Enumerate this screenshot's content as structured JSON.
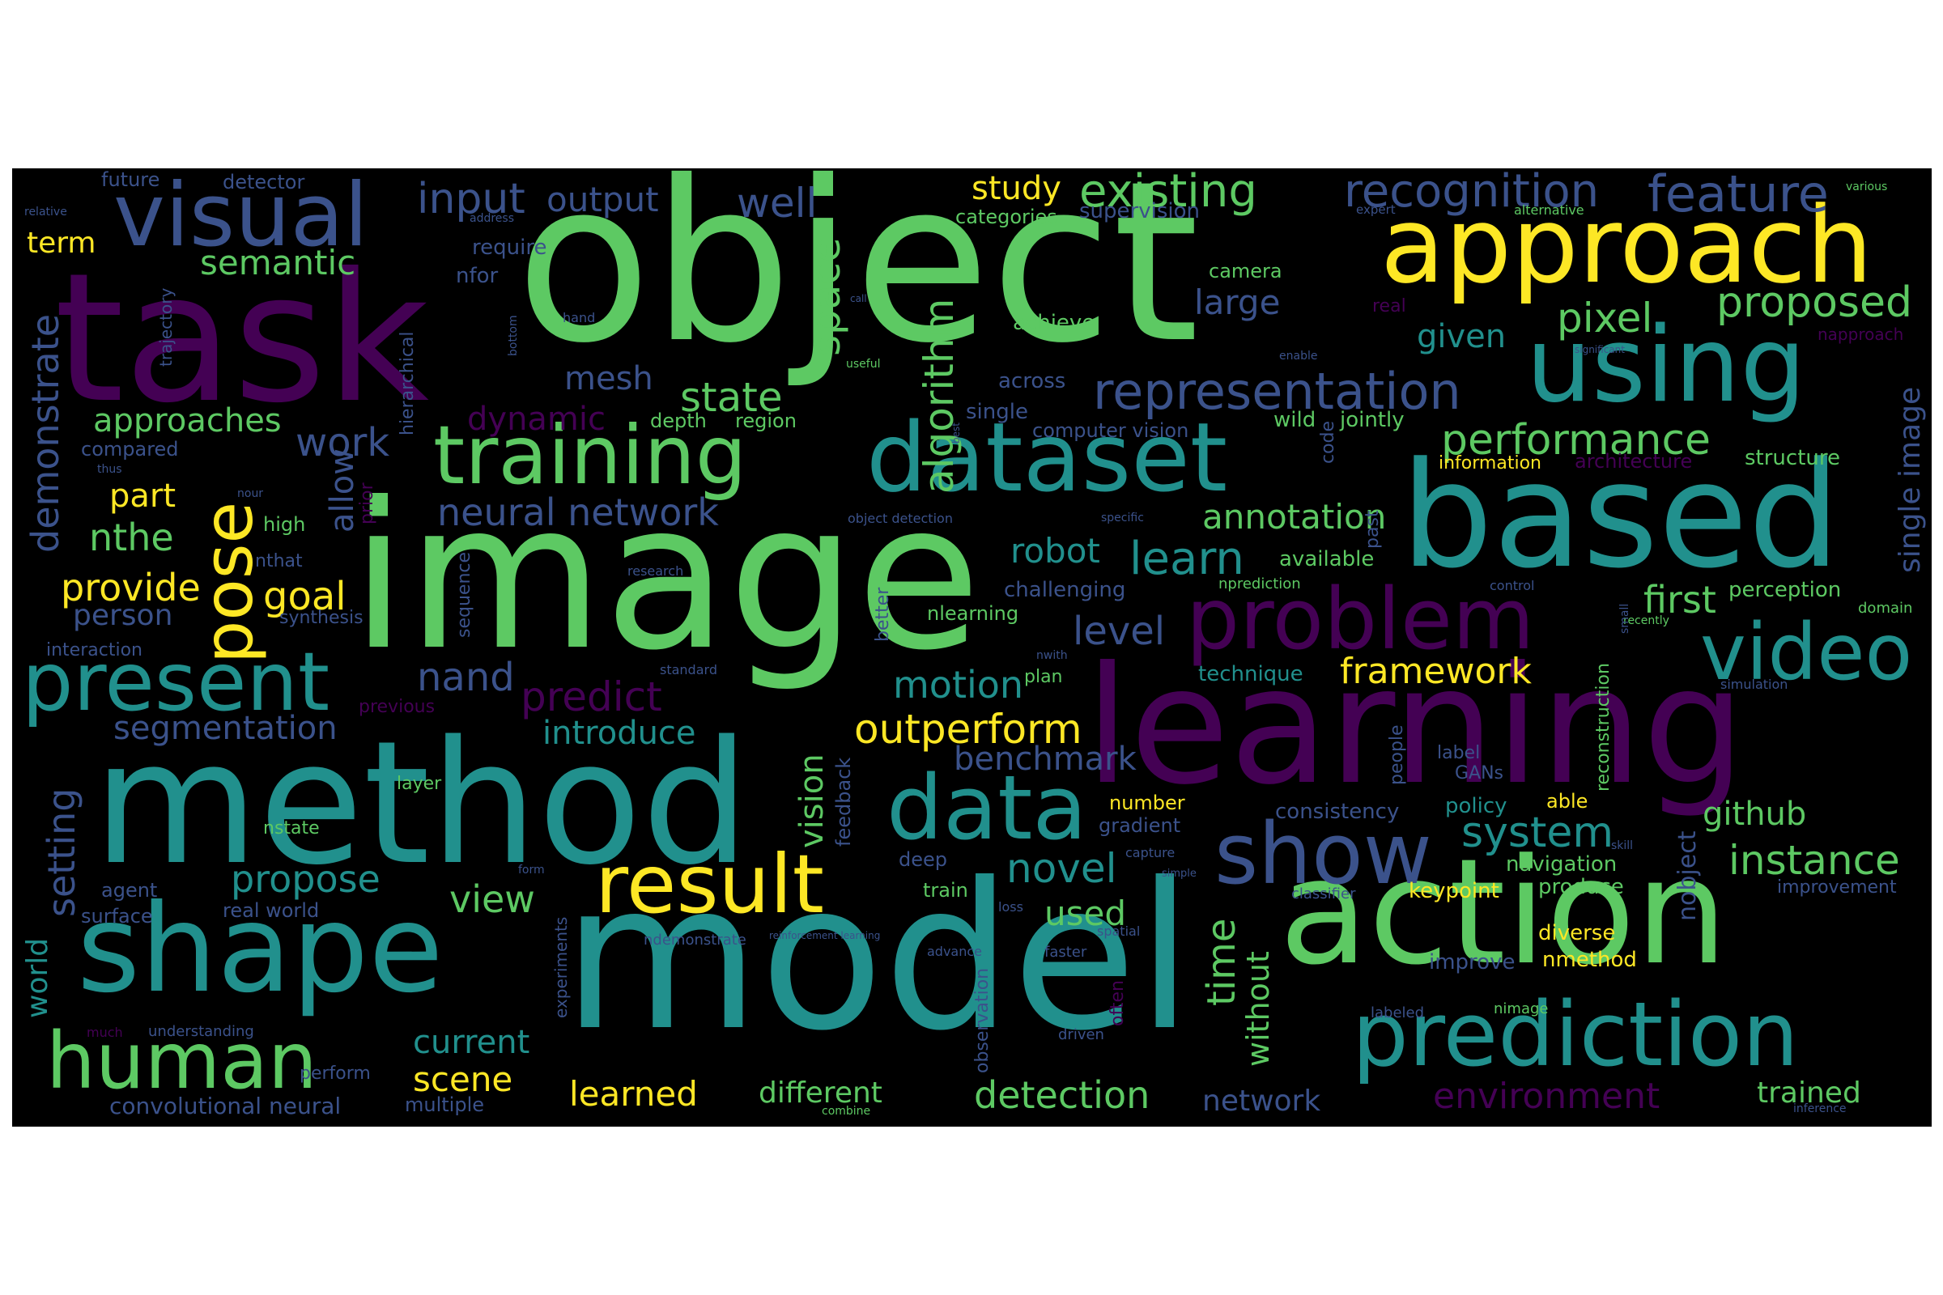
{
  "wordcloud": {
    "background": "#000000",
    "palette": [
      "#440154",
      "#3b528b",
      "#21908d",
      "#5dc963",
      "#fde725"
    ],
    "words": [
      {
        "text": "object",
        "color": "#5dc963"
      },
      {
        "text": "image",
        "color": "#5dc963"
      },
      {
        "text": "model",
        "color": "#21908d"
      },
      {
        "text": "task",
        "color": "#440154"
      },
      {
        "text": "method",
        "color": "#21908d"
      },
      {
        "text": "learning",
        "color": "#440154"
      },
      {
        "text": "action",
        "color": "#5dc963"
      },
      {
        "text": "based",
        "color": "#21908d"
      },
      {
        "text": "approach",
        "color": "#fde725"
      },
      {
        "text": "shape",
        "color": "#21908d"
      },
      {
        "text": "using",
        "color": "#21908d"
      },
      {
        "text": "dataset",
        "color": "#21908d"
      },
      {
        "text": "prediction",
        "color": "#21908d"
      },
      {
        "text": "training",
        "color": "#5dc963"
      },
      {
        "text": "visual",
        "color": "#3b528b"
      },
      {
        "text": "problem",
        "color": "#440154"
      },
      {
        "text": "video",
        "color": "#21908d"
      },
      {
        "text": "data",
        "color": "#21908d"
      },
      {
        "text": "show",
        "color": "#3b528b"
      },
      {
        "text": "result",
        "color": "#fde725"
      },
      {
        "text": "present",
        "color": "#21908d"
      },
      {
        "text": "human",
        "color": "#5dc963"
      },
      {
        "text": "pose",
        "color": "#fde725"
      },
      {
        "text": "feature",
        "color": "#3b528b"
      },
      {
        "text": "recognition",
        "color": "#3b528b"
      },
      {
        "text": "representation",
        "color": "#3b528b"
      },
      {
        "text": "existing",
        "color": "#5dc963"
      },
      {
        "text": "proposed",
        "color": "#5dc963"
      },
      {
        "text": "performance",
        "color": "#5dc963"
      },
      {
        "text": "input",
        "color": "#3b528b"
      },
      {
        "text": "output",
        "color": "#3b528b"
      },
      {
        "text": "well",
        "color": "#3b528b"
      },
      {
        "text": "study",
        "color": "#fde725"
      },
      {
        "text": "semantic",
        "color": "#5dc963"
      },
      {
        "text": "pixel",
        "color": "#5dc963"
      },
      {
        "text": "algorithm",
        "color": "#5dc963"
      },
      {
        "text": "space",
        "color": "#5dc963"
      },
      {
        "text": "large",
        "color": "#3b528b"
      },
      {
        "text": "state",
        "color": "#5dc963"
      },
      {
        "text": "mesh",
        "color": "#3b528b"
      },
      {
        "text": "dynamic",
        "color": "#440154"
      },
      {
        "text": "neural network",
        "color": "#3b528b"
      },
      {
        "text": "approaches",
        "color": "#5dc963"
      },
      {
        "text": "work",
        "color": "#3b528b"
      },
      {
        "text": "demonstrate",
        "color": "#3b528b"
      },
      {
        "text": "part",
        "color": "#fde725"
      },
      {
        "text": "nthe",
        "color": "#5dc963"
      },
      {
        "text": "provide",
        "color": "#fde725"
      },
      {
        "text": "goal",
        "color": "#fde725"
      },
      {
        "text": "allow",
        "color": "#3b528b"
      },
      {
        "text": "robot",
        "color": "#21908d"
      },
      {
        "text": "learn",
        "color": "#21908d"
      },
      {
        "text": "annotation",
        "color": "#5dc963"
      },
      {
        "text": "level",
        "color": "#3b528b"
      },
      {
        "text": "first",
        "color": "#5dc963"
      },
      {
        "text": "given",
        "color": "#21908d"
      },
      {
        "text": "framework",
        "color": "#fde725"
      },
      {
        "text": "motion",
        "color": "#21908d"
      },
      {
        "text": "nand",
        "color": "#3b528b"
      },
      {
        "text": "predict",
        "color": "#440154"
      },
      {
        "text": "outperform",
        "color": "#fde725"
      },
      {
        "text": "introduce",
        "color": "#21908d"
      },
      {
        "text": "segmentation",
        "color": "#3b528b"
      },
      {
        "text": "benchmark",
        "color": "#3b528b"
      },
      {
        "text": "instance",
        "color": "#5dc963"
      },
      {
        "text": "system",
        "color": "#21908d"
      },
      {
        "text": "github",
        "color": "#5dc963"
      },
      {
        "text": "setting",
        "color": "#3b528b"
      },
      {
        "text": "propose",
        "color": "#21908d"
      },
      {
        "text": "view",
        "color": "#5dc963"
      },
      {
        "text": "novel",
        "color": "#21908d"
      },
      {
        "text": "time",
        "color": "#5dc963"
      },
      {
        "text": "used",
        "color": "#5dc963"
      },
      {
        "text": "current",
        "color": "#21908d"
      },
      {
        "text": "scene",
        "color": "#fde725"
      },
      {
        "text": "learned",
        "color": "#fde725"
      },
      {
        "text": "different",
        "color": "#5dc963"
      },
      {
        "text": "detection",
        "color": "#5dc963"
      },
      {
        "text": "network",
        "color": "#3b528b"
      },
      {
        "text": "environment",
        "color": "#440154"
      },
      {
        "text": "trained",
        "color": "#5dc963"
      },
      {
        "text": "vision",
        "color": "#5dc963"
      },
      {
        "text": "nobject",
        "color": "#3b528b"
      },
      {
        "text": "without",
        "color": "#5dc963"
      },
      {
        "text": "single image",
        "color": "#3b528b"
      },
      {
        "text": "term",
        "color": "#fde725"
      },
      {
        "text": "person",
        "color": "#3b528b"
      },
      {
        "text": "world",
        "color": "#21908d"
      },
      {
        "text": "perception",
        "color": "#5dc963"
      },
      {
        "text": "diverse",
        "color": "#fde725"
      },
      {
        "text": "nmethod",
        "color": "#fde725"
      },
      {
        "text": "keypoint",
        "color": "#fde725"
      },
      {
        "text": "consistency",
        "color": "#3b528b"
      },
      {
        "text": "policy",
        "color": "#21908d"
      },
      {
        "text": "navigation",
        "color": "#5dc963"
      },
      {
        "text": "produce",
        "color": "#5dc963"
      },
      {
        "text": "improve",
        "color": "#3b528b"
      },
      {
        "text": "challenging",
        "color": "#3b528b"
      },
      {
        "text": "technique",
        "color": "#21908d"
      },
      {
        "text": "available",
        "color": "#5dc963"
      },
      {
        "text": "jointly",
        "color": "#5dc963"
      },
      {
        "text": "single",
        "color": "#3b528b"
      },
      {
        "text": "computer vision",
        "color": "#3b528b"
      },
      {
        "text": "achieve",
        "color": "#5dc963"
      },
      {
        "text": "across",
        "color": "#3b528b"
      },
      {
        "text": "depth",
        "color": "#5dc963"
      },
      {
        "text": "region",
        "color": "#5dc963"
      },
      {
        "text": "camera",
        "color": "#5dc963"
      },
      {
        "text": "categories",
        "color": "#5dc963"
      },
      {
        "text": "supervision",
        "color": "#3b528b"
      },
      {
        "text": "require",
        "color": "#3b528b"
      },
      {
        "text": "nfor",
        "color": "#3b528b"
      },
      {
        "text": "future",
        "color": "#3b528b"
      },
      {
        "text": "detector",
        "color": "#3b528b"
      },
      {
        "text": "real",
        "color": "#440154"
      },
      {
        "text": "wild",
        "color": "#5dc963"
      },
      {
        "text": "information",
        "color": "#fde725"
      },
      {
        "text": "architecture",
        "color": "#440154"
      },
      {
        "text": "structure",
        "color": "#5dc963"
      },
      {
        "text": "compared",
        "color": "#3b528b"
      },
      {
        "text": "high",
        "color": "#5dc963"
      },
      {
        "text": "nthat",
        "color": "#3b528b"
      },
      {
        "text": "synthesis",
        "color": "#3b528b"
      },
      {
        "text": "interaction",
        "color": "#3b528b"
      },
      {
        "text": "agent",
        "color": "#3b528b"
      },
      {
        "text": "surface",
        "color": "#3b528b"
      },
      {
        "text": "real world",
        "color": "#3b528b"
      },
      {
        "text": "layer",
        "color": "#5dc963"
      },
      {
        "text": "previous",
        "color": "#440154"
      },
      {
        "text": "convolutional neural",
        "color": "#3b528b"
      },
      {
        "text": "multiple",
        "color": "#3b528b"
      },
      {
        "text": "perform",
        "color": "#3b528b"
      },
      {
        "text": "understanding",
        "color": "#3b528b"
      },
      {
        "text": "much",
        "color": "#440154"
      },
      {
        "text": "nstate",
        "color": "#5dc963"
      },
      {
        "text": "plan",
        "color": "#5dc963"
      },
      {
        "text": "nlearning",
        "color": "#5dc963"
      },
      {
        "text": "nprediction",
        "color": "#5dc963"
      },
      {
        "text": "number",
        "color": "#fde725"
      },
      {
        "text": "gradient",
        "color": "#3b528b"
      },
      {
        "text": "deep",
        "color": "#3b528b"
      },
      {
        "text": "train",
        "color": "#5dc963"
      },
      {
        "text": "label",
        "color": "#3b528b"
      },
      {
        "text": "GANs",
        "color": "#3b528b"
      },
      {
        "text": "able",
        "color": "#fde725"
      },
      {
        "text": "people",
        "color": "#3b528b"
      },
      {
        "text": "reconstruction",
        "color": "#5dc963"
      },
      {
        "text": "feedback",
        "color": "#3b528b"
      },
      {
        "text": "experiments",
        "color": "#3b528b"
      },
      {
        "text": "observation",
        "color": "#3b528b"
      },
      {
        "text": "often",
        "color": "#440154"
      },
      {
        "text": "sequence",
        "color": "#3b528b"
      },
      {
        "text": "hierarchical",
        "color": "#3b528b"
      },
      {
        "text": "trajectory",
        "color": "#3b528b"
      },
      {
        "text": "better",
        "color": "#3b528b"
      },
      {
        "text": "code",
        "color": "#3b528b"
      },
      {
        "text": "past",
        "color": "#3b528b"
      },
      {
        "text": "object detection",
        "color": "#3b528b"
      },
      {
        "text": "faster",
        "color": "#3b528b"
      },
      {
        "text": "driven",
        "color": "#3b528b"
      },
      {
        "text": "labeled",
        "color": "#3b528b"
      },
      {
        "text": "nimage",
        "color": "#5dc963"
      },
      {
        "text": "ndemonstrate",
        "color": "#3b528b"
      },
      {
        "text": "reinforcement learning",
        "color": "#3b528b"
      },
      {
        "text": "advance",
        "color": "#3b528b"
      },
      {
        "text": "spatial",
        "color": "#3b528b"
      },
      {
        "text": "standard",
        "color": "#3b528b"
      },
      {
        "text": "research",
        "color": "#3b528b"
      },
      {
        "text": "classifier",
        "color": "#3b528b"
      },
      {
        "text": "improvement",
        "color": "#3b528b"
      },
      {
        "text": "capture",
        "color": "#3b528b"
      },
      {
        "text": "simple",
        "color": "#3b528b"
      },
      {
        "text": "loss",
        "color": "#3b528b"
      },
      {
        "text": "combine",
        "color": "#5dc963"
      },
      {
        "text": "form",
        "color": "#3b528b"
      },
      {
        "text": "control",
        "color": "#3b528b"
      },
      {
        "text": "nwith",
        "color": "#3b528b"
      },
      {
        "text": "recently",
        "color": "#5dc963"
      },
      {
        "text": "domain",
        "color": "#5dc963"
      },
      {
        "text": "simulation",
        "color": "#3b528b"
      },
      {
        "text": "napproach",
        "color": "#440154"
      },
      {
        "text": "significant",
        "color": "#3b528b"
      },
      {
        "text": "expert",
        "color": "#3b528b"
      },
      {
        "text": "alternative",
        "color": "#5dc963"
      },
      {
        "text": "various",
        "color": "#5dc963"
      },
      {
        "text": "relative",
        "color": "#3b528b"
      },
      {
        "text": "address",
        "color": "#3b528b"
      },
      {
        "text": "hand",
        "color": "#3b528b"
      },
      {
        "text": "call",
        "color": "#3b528b"
      },
      {
        "text": "useful",
        "color": "#5dc963"
      },
      {
        "text": "bottom",
        "color": "#3b528b"
      },
      {
        "text": "enable",
        "color": "#3b528b"
      },
      {
        "text": "best",
        "color": "#3b528b"
      },
      {
        "text": "nour",
        "color": "#3b528b"
      },
      {
        "text": "thus",
        "color": "#3b528b"
      },
      {
        "text": "prior",
        "color": "#440154"
      },
      {
        "text": "specific",
        "color": "#3b528b"
      },
      {
        "text": "skill",
        "color": "#3b528b"
      },
      {
        "text": "small",
        "color": "#3b528b"
      },
      {
        "text": "inference",
        "color": "#3b528b"
      }
    ]
  }
}
